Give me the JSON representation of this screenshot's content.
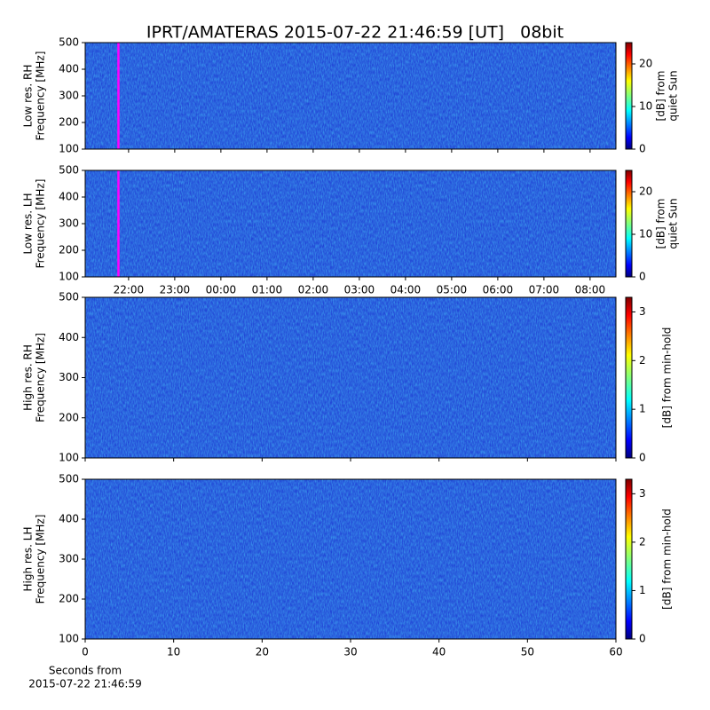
{
  "title": "IPRT/AMATERAS 2015-07-22 21:46:59 [UT]   08bit",
  "chart_data": [
    {
      "type": "heatmap",
      "ylabel": [
        "Low res. RH",
        "Frequency [MHz]"
      ],
      "xlim": [
        21.06,
        32.56
      ],
      "xticks": [
        22,
        23,
        24,
        25,
        26,
        27,
        28,
        29,
        30,
        31,
        32
      ],
      "xtick_labels": false,
      "ylim": [
        100,
        500
      ],
      "yticks": [
        100,
        200,
        300,
        400,
        500
      ],
      "marker": 21.78,
      "marker_color": "#ff00ff",
      "clim": [
        0,
        25
      ],
      "cticks": [
        0,
        10,
        20
      ],
      "clabel": [
        "[dB] from",
        "quiet Sun"
      ]
    },
    {
      "type": "heatmap",
      "ylabel": [
        "Low res. LH",
        "Frequency [MHz]"
      ],
      "xlim": [
        21.06,
        32.56
      ],
      "xticks": [
        {
          "value": 22,
          "label": "22:00"
        },
        {
          "value": 23,
          "label": "23:00"
        },
        {
          "value": 24,
          "label": "00:00"
        },
        {
          "value": 25,
          "label": "01:00"
        },
        {
          "value": 26,
          "label": "02:00"
        },
        {
          "value": 27,
          "label": "03:00"
        },
        {
          "value": 28,
          "label": "04:00"
        },
        {
          "value": 29,
          "label": "05:00"
        },
        {
          "value": 30,
          "label": "06:00"
        },
        {
          "value": 31,
          "label": "07:00"
        },
        {
          "value": 32,
          "label": "08:00"
        }
      ],
      "ylim": [
        100,
        500
      ],
      "yticks": [
        100,
        200,
        300,
        400,
        500
      ],
      "marker": 21.78,
      "marker_color": "#ff00ff",
      "clim": [
        0,
        25
      ],
      "cticks": [
        0,
        10,
        20
      ],
      "clabel": [
        "[dB] from",
        "quiet Sun"
      ]
    },
    {
      "type": "heatmap",
      "ylabel": [
        "High res. RH",
        "Frequency [MHz]"
      ],
      "xlim": [
        0,
        60
      ],
      "xticks": [
        0,
        10,
        20,
        30,
        40,
        50,
        60
      ],
      "xtick_labels": false,
      "ylim": [
        100,
        500
      ],
      "yticks": [
        100,
        200,
        300,
        400,
        500
      ],
      "clim": [
        0,
        3.3
      ],
      "cticks": [
        0,
        1,
        2,
        3
      ],
      "clabel": [
        "[dB] from min-hold"
      ]
    },
    {
      "type": "heatmap",
      "ylabel": [
        "High res. LH",
        "Frequency [MHz]"
      ],
      "xlim": [
        0,
        60
      ],
      "xticks": [
        0,
        10,
        20,
        30,
        40,
        50,
        60
      ],
      "xlabel": [
        "Seconds from",
        "2015-07-22 21:46:59"
      ],
      "ylim": [
        100,
        500
      ],
      "yticks": [
        100,
        200,
        300,
        400,
        500
      ],
      "clim": [
        0,
        3.3
      ],
      "cticks": [
        0,
        1,
        2,
        3
      ],
      "clabel": [
        "[dB] from min-hold"
      ]
    }
  ]
}
